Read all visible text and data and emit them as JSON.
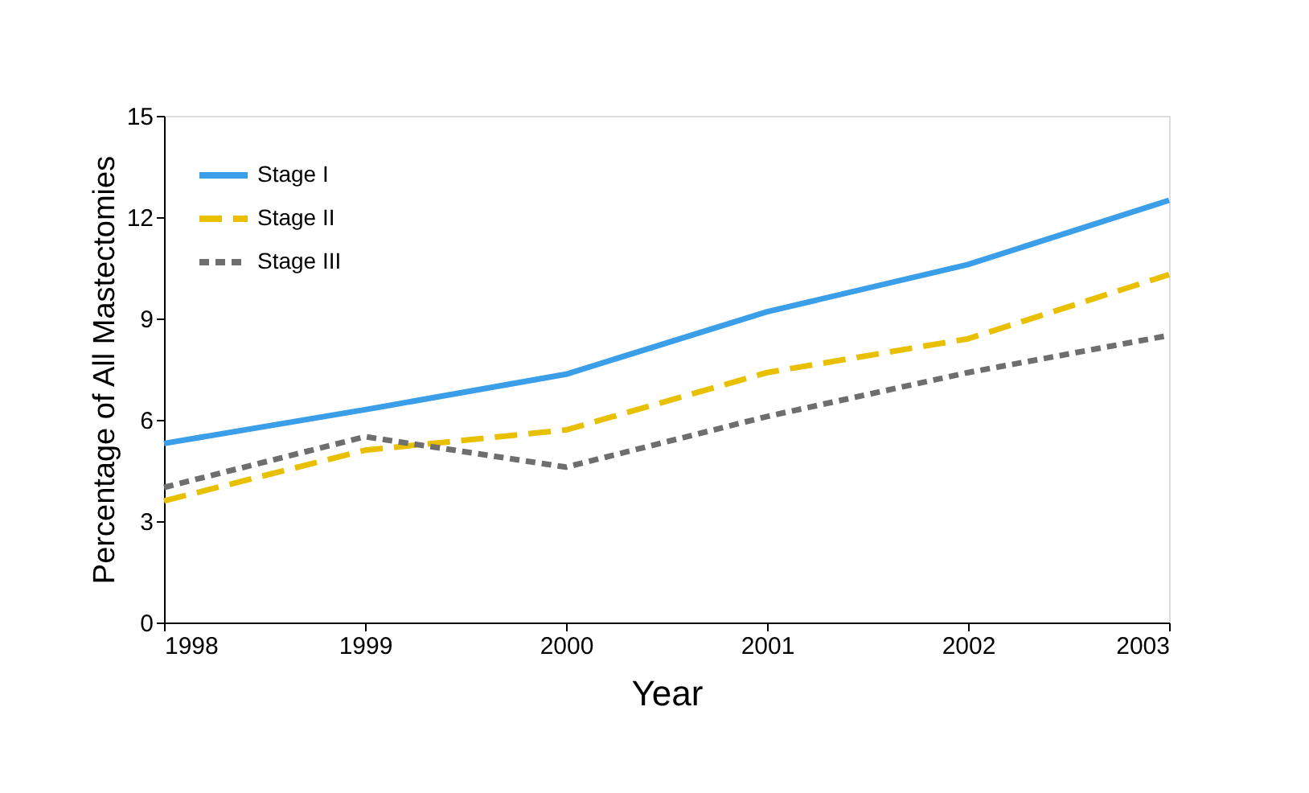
{
  "chart_data": {
    "type": "line",
    "xlabel": "Year",
    "ylabel": "Percentage of All Mastectomies",
    "x": [
      1998,
      1999,
      2000,
      2001,
      2002,
      2003
    ],
    "series": [
      {
        "name": "Stage I",
        "color": "#3a9ee8",
        "line_style": "solid",
        "values": [
          5.3,
          6.3,
          7.35,
          9.2,
          10.6,
          12.5
        ]
      },
      {
        "name": "Stage II",
        "color": "#e8c000",
        "line_style": "dashed",
        "values": [
          3.6,
          5.1,
          5.7,
          7.4,
          8.4,
          10.3
        ]
      },
      {
        "name": "Stage III",
        "color": "#6e6e6e",
        "line_style": "dotted",
        "values": [
          4.0,
          5.5,
          4.6,
          6.1,
          7.4,
          8.5
        ]
      }
    ],
    "xlim": [
      1998,
      2003
    ],
    "xticks": [
      1998,
      1999,
      2000,
      2001,
      2002,
      2003
    ],
    "ylim": [
      0,
      15
    ],
    "yticks": [
      0,
      3,
      6,
      9,
      12,
      15
    ],
    "grid": false,
    "legend": "top left",
    "marker": "none"
  }
}
